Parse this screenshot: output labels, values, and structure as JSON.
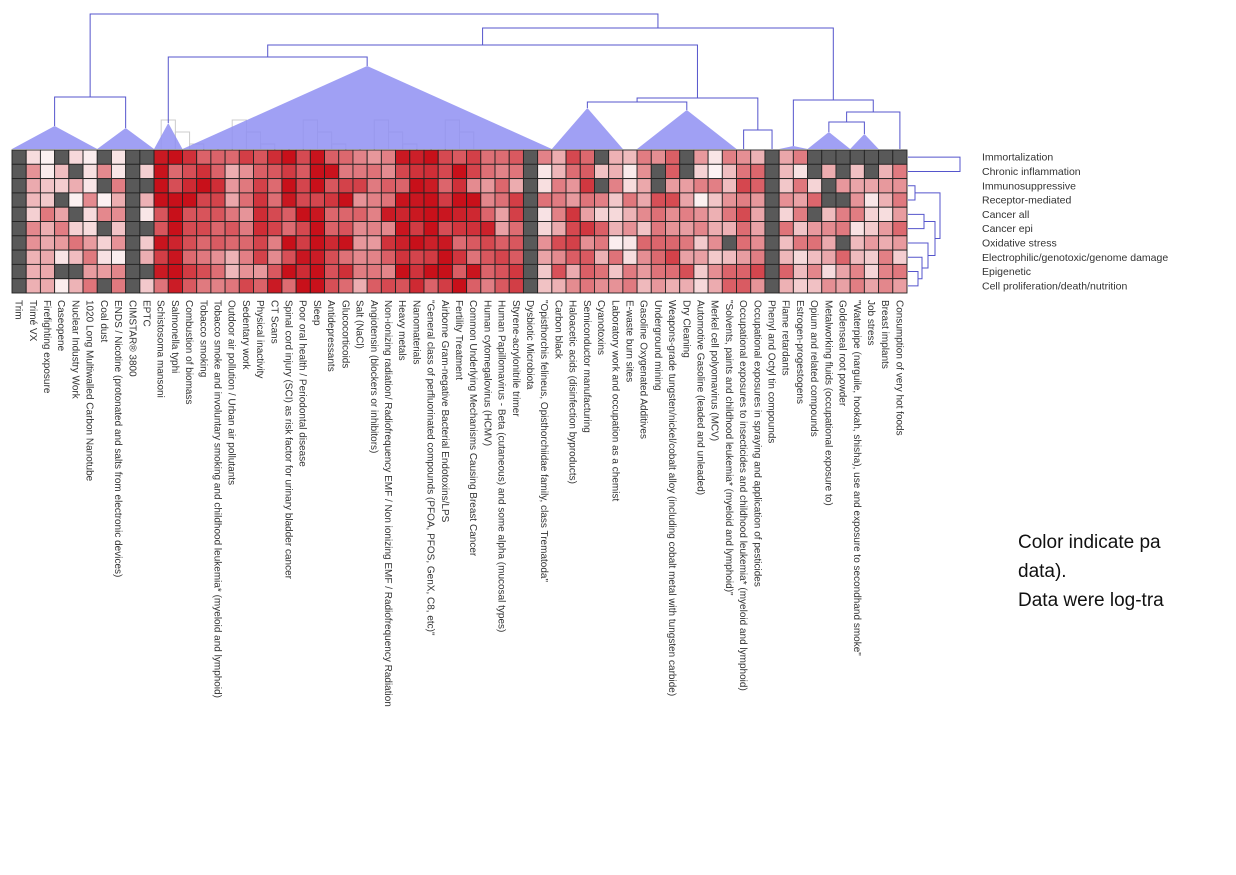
{
  "caption": {
    "line1": "Color indicate pa",
    "line2": "data).",
    "line3": "Data were log-tra"
  },
  "chart_data": {
    "type": "heatmap",
    "row_labels": [
      "Immortalization",
      "Chronic inflammation",
      "Immunosuppressive",
      "Receptor-mediated",
      "Cancer all",
      "Cancer epi",
      "Oxidative stress",
      "Electrophilic/genotoxic/genome damage",
      "Epigenetic",
      "Cell proliferation/death/nutrition"
    ],
    "column_labels": [
      "Trim",
      "Trimé VX",
      "Firefighting exposure",
      "Caseopene",
      "Nuclear Industry Work",
      "1020 Long Multiwalled Carbon Nanotube",
      "Coal dust",
      "ENDS / Nicotine (protonated and salts from electronic devices)",
      "CIMSTAR® 3800",
      "EPTC",
      "Schistosoma mansoni",
      "Salmonella typhi",
      "Combustion of biomass",
      "Tobacco smoking",
      "Tobacco smoke and involuntary smoking and childhood leukemia* (myeloid and lymphoid)",
      "Outdoor air pollution / Urban air pollutants",
      "Sedentary work",
      "Physical inactivity",
      "CT Scans",
      "Spinal cord injury (SCI) as risk factor for urinary bladder cancer",
      "Poor oral health / Periodontal disease",
      "Sleep",
      "Antidepressants",
      "Glucocorticoids",
      "Salt (NaCl)",
      "Angiotensin (blockers or inhibitors)",
      "Non-ionizing radiation/ Radiofrequency EMF / Non ionizing EMF / Radiofrequency Radiation",
      "Heavy metals",
      "Nanomaterials",
      "\"General class of perfluorinated compounds (PFOA, PFOS, GenX, C8, etc)\"",
      "Airborne Gram-negative Bacterial Endotoxins/LPS",
      "Fertility Treatment",
      "Common Underlying Mechanisms Causing Breast Cancer",
      "Human cytomegalovirus (HCMV)",
      "Human Papillomavirus - Beta (cutaneous) and some alpha (mucosal types)",
      "Styrene-acrylonitrile trimer",
      "Dysbiotic Microbiota",
      "\"Opisthorchis felineus, Opisthorchiidae family, class Trematoda\"",
      "Carbon black",
      "Haloacetic acids (disinfection byproducts)",
      "Semiconductor manufacturing",
      "Cyanotoxins",
      "Laboratory work and occupation as a chemist",
      "E-waste burn sites",
      "Gasoline Oxygenated Additives",
      "Underground mining",
      "Weapons-grade tungsten/nickel/cobalt alloy (including cobalt metal with tungsten carbide)",
      "Dry Cleaning",
      "Automotive Gasoline (leaded and unleaded)",
      "Merkel cell polyomavirus (MCV)",
      "\"Solvents, paints and childhood leukemia* (myeloid and lymphoid)\"",
      "Occupational exposures to insecticides and childhood leukemia* (myeloid and lymphoid)",
      "Occupational exposures in spraying and application of pesticides",
      "Phenyl and Octyl tin compounds",
      "Flame retardants",
      "Estrogen-progestogens",
      "Opium and related compounds",
      "Metalworking fluids (occupational exposure to)",
      "Goldenseal root powder",
      "\"Waterpipe (narguile, hookah, shisha), use and exposure to secondhand smoke\"",
      "Job stress",
      "Breast implants",
      "Consumption of very hot foods"
    ],
    "scale": "log-transformed",
    "color_high": "#c8101a",
    "color_low": "#ffffff",
    "color_missing": "#595959",
    "dendrogram_color": "#5555cc",
    "collapsed_cluster_color": "#8f8ff2"
  }
}
